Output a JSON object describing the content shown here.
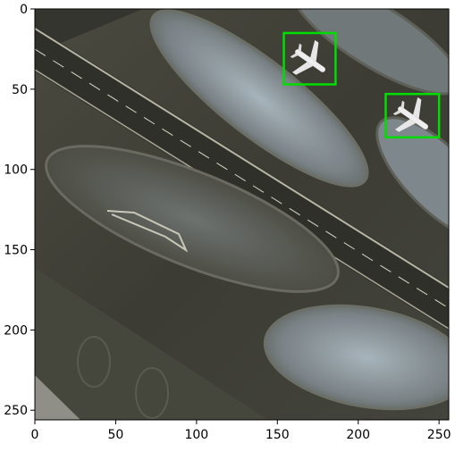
{
  "image_kind": "aerial airport apron photograph with detection boxes",
  "colors": {
    "detection_box": "#00dd00",
    "ground_dark": "#3a3a32",
    "pavement_light": "#8d9598",
    "aircraft": "#eeeeee"
  },
  "axes": {
    "x_ticks": [
      "0",
      "50",
      "100",
      "150",
      "200",
      "250"
    ],
    "y_ticks": [
      "0",
      "50",
      "100",
      "150",
      "200",
      "250"
    ],
    "xlim": [
      0,
      256
    ],
    "ylim": [
      256,
      0
    ]
  },
  "detections": [
    {
      "label": "airplane",
      "x0": 154,
      "y0": 15,
      "x1": 186,
      "y1": 47
    },
    {
      "label": "airplane",
      "x0": 217,
      "y0": 53,
      "x1": 250,
      "y1": 80
    }
  ]
}
